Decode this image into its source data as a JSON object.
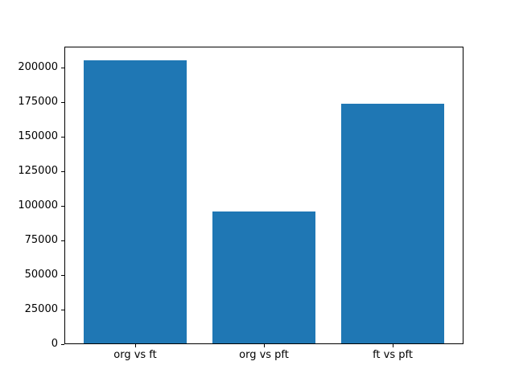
{
  "chart_data": {
    "type": "bar",
    "categories": [
      "org vs ft",
      "org vs pft",
      "ft vs pft"
    ],
    "values": [
      205000,
      95500,
      173500
    ],
    "title": "",
    "xlabel": "",
    "ylabel": "",
    "ylim": [
      0,
      215250
    ],
    "yticks": [
      0,
      25000,
      50000,
      75000,
      100000,
      125000,
      150000,
      175000,
      200000
    ],
    "ytick_labels": [
      "0",
      "25000",
      "50000",
      "75000",
      "100000",
      "125000",
      "150000",
      "175000",
      "200000"
    ],
    "bar_color": "#1f77b4",
    "axis_color": "#000000",
    "background_color": "#ffffff",
    "grid": false,
    "legend": null,
    "bar_width_fraction": 0.8
  }
}
